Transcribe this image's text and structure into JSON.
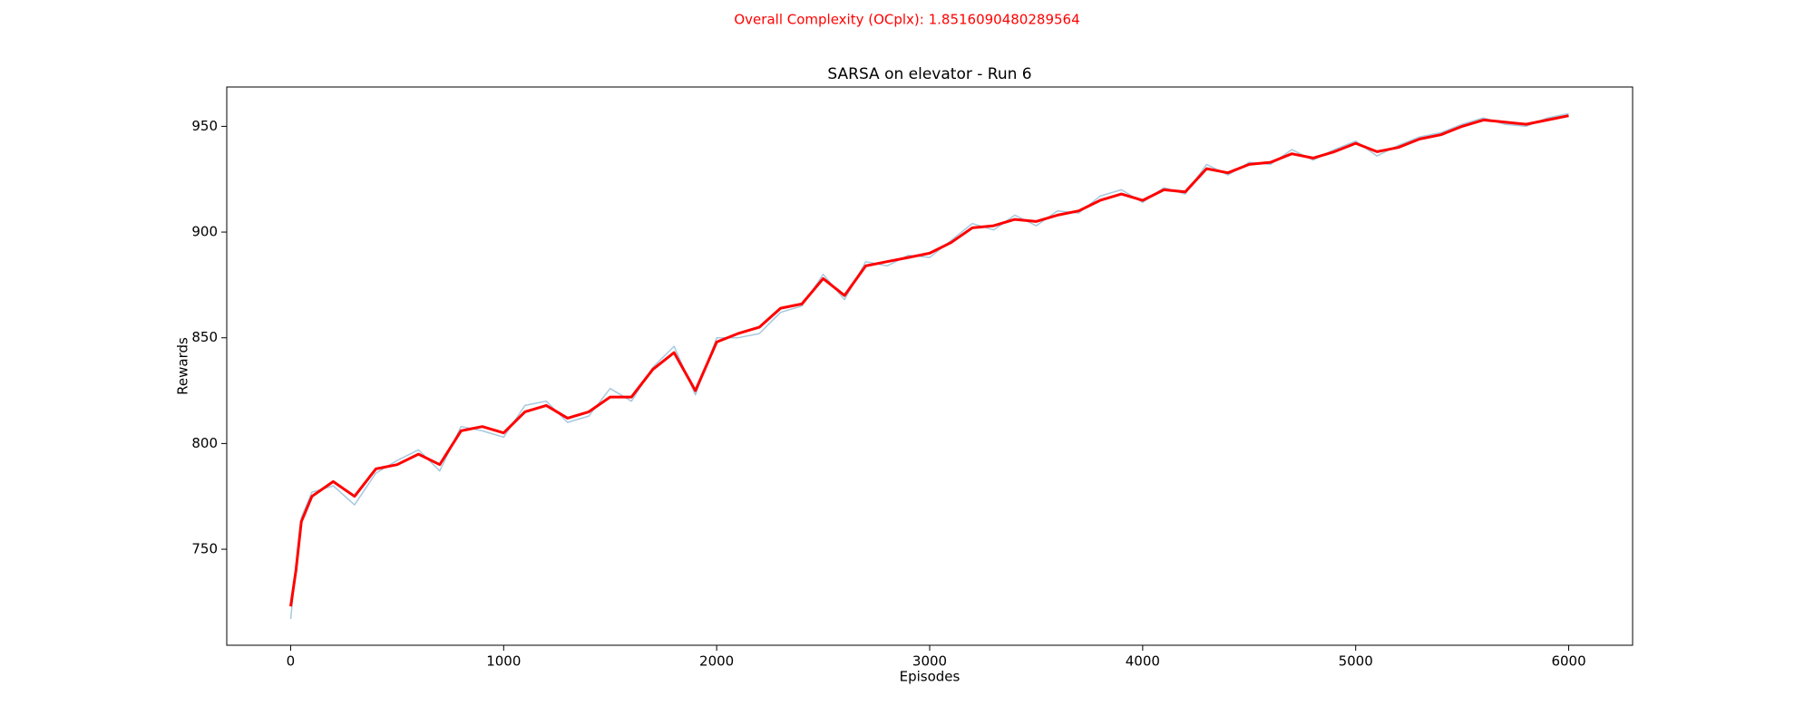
{
  "chart_data": {
    "type": "line",
    "suptitle": "Overall Complexity (OCplx): 1.8516090480289564",
    "suptitle_color": "#ff0000",
    "title": "SARSA on elevator - Run 6",
    "xlabel": "Episodes",
    "ylabel": "Rewards",
    "x": [
      0,
      25,
      50,
      100,
      200,
      300,
      400,
      500,
      600,
      700,
      800,
      900,
      1000,
      1100,
      1200,
      1300,
      1400,
      1500,
      1600,
      1700,
      1800,
      1900,
      2000,
      2100,
      2200,
      2300,
      2400,
      2500,
      2600,
      2700,
      2800,
      2900,
      3000,
      3100,
      3200,
      3300,
      3400,
      3500,
      3600,
      3700,
      3800,
      3900,
      4000,
      4100,
      4200,
      4300,
      4400,
      4500,
      4600,
      4700,
      4800,
      4900,
      5000,
      5100,
      5200,
      5300,
      5400,
      5500,
      5600,
      5700,
      5800,
      5900,
      6000
    ],
    "series": [
      {
        "color": "#a6c8df",
        "width": 1.5,
        "values": [
          717,
          742,
          765,
          777,
          780,
          771,
          786,
          792,
          797,
          787,
          808,
          806,
          803,
          818,
          820,
          810,
          813,
          826,
          820,
          836,
          846,
          823,
          850,
          850,
          852,
          862,
          865,
          880,
          868,
          886,
          884,
          889,
          888,
          896,
          904,
          901,
          908,
          903,
          910,
          909,
          917,
          920,
          914,
          921,
          918,
          932,
          927,
          933,
          932,
          939,
          934,
          939,
          943,
          936,
          941,
          945,
          947,
          951,
          954,
          951,
          950,
          954,
          956
        ]
      },
      {
        "color": "#ff0000",
        "width": 3,
        "values": [
          723,
          740,
          763,
          775,
          782,
          775,
          788,
          790,
          795,
          790,
          806,
          808,
          805,
          815,
          818,
          812,
          815,
          822,
          822,
          835,
          843,
          825,
          848,
          852,
          855,
          864,
          866,
          878,
          870,
          884,
          886,
          888,
          890,
          895,
          902,
          903,
          906,
          905,
          908,
          910,
          915,
          918,
          915,
          920,
          919,
          930,
          928,
          932,
          933,
          937,
          935,
          938,
          942,
          938,
          940,
          944,
          946,
          950,
          953,
          952,
          951,
          953,
          955
        ]
      }
    ],
    "xlim": [
      -300,
      6300
    ],
    "ylim": [
      704.6,
      968.6
    ],
    "xticks": [
      0,
      1000,
      2000,
      3000,
      4000,
      5000,
      6000
    ],
    "yticks": [
      750,
      800,
      850,
      900,
      950
    ]
  }
}
